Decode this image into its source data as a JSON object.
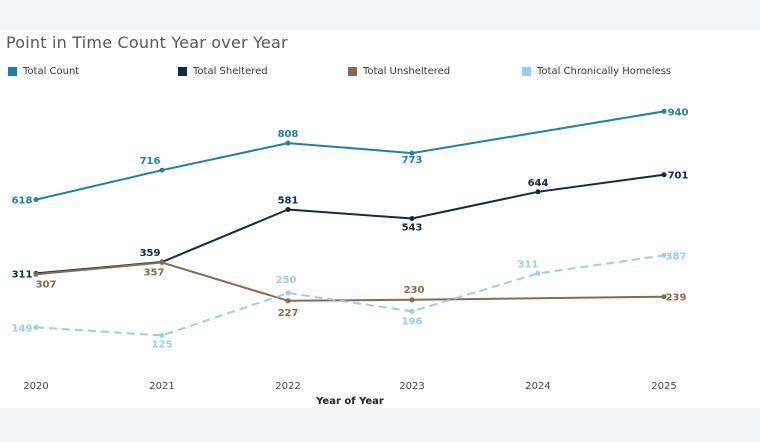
{
  "chart_data": {
    "type": "line",
    "title": "Point in Time Count Year over Year",
    "xlabel": "Year of Year",
    "ylabel": "",
    "categories": [
      "2020",
      "2021",
      "2022",
      "2023",
      "2024",
      "2025"
    ],
    "ylim": [
      0,
      1000
    ],
    "grid": false,
    "legend_position": "top",
    "series": [
      {
        "name": "Total Count",
        "color": "#1f7fa8",
        "dashed": false,
        "values": [
          618,
          716,
          808,
          773,
          null,
          940
        ]
      },
      {
        "name": "Total Sheltered",
        "color": "#0f2a4d",
        "dashed": false,
        "values": [
          311,
          359,
          581,
          543,
          644,
          701
        ]
      },
      {
        "name": "Total Unsheltered",
        "color": "#8a6a4e",
        "dashed": false,
        "values": [
          307,
          357,
          227,
          230,
          null,
          239
        ]
      },
      {
        "name": "Total Chronically Homeless",
        "color": "#9ecbee",
        "dashed": true,
        "values": [
          149,
          125,
          250,
          196,
          311,
          387
        ]
      }
    ]
  }
}
